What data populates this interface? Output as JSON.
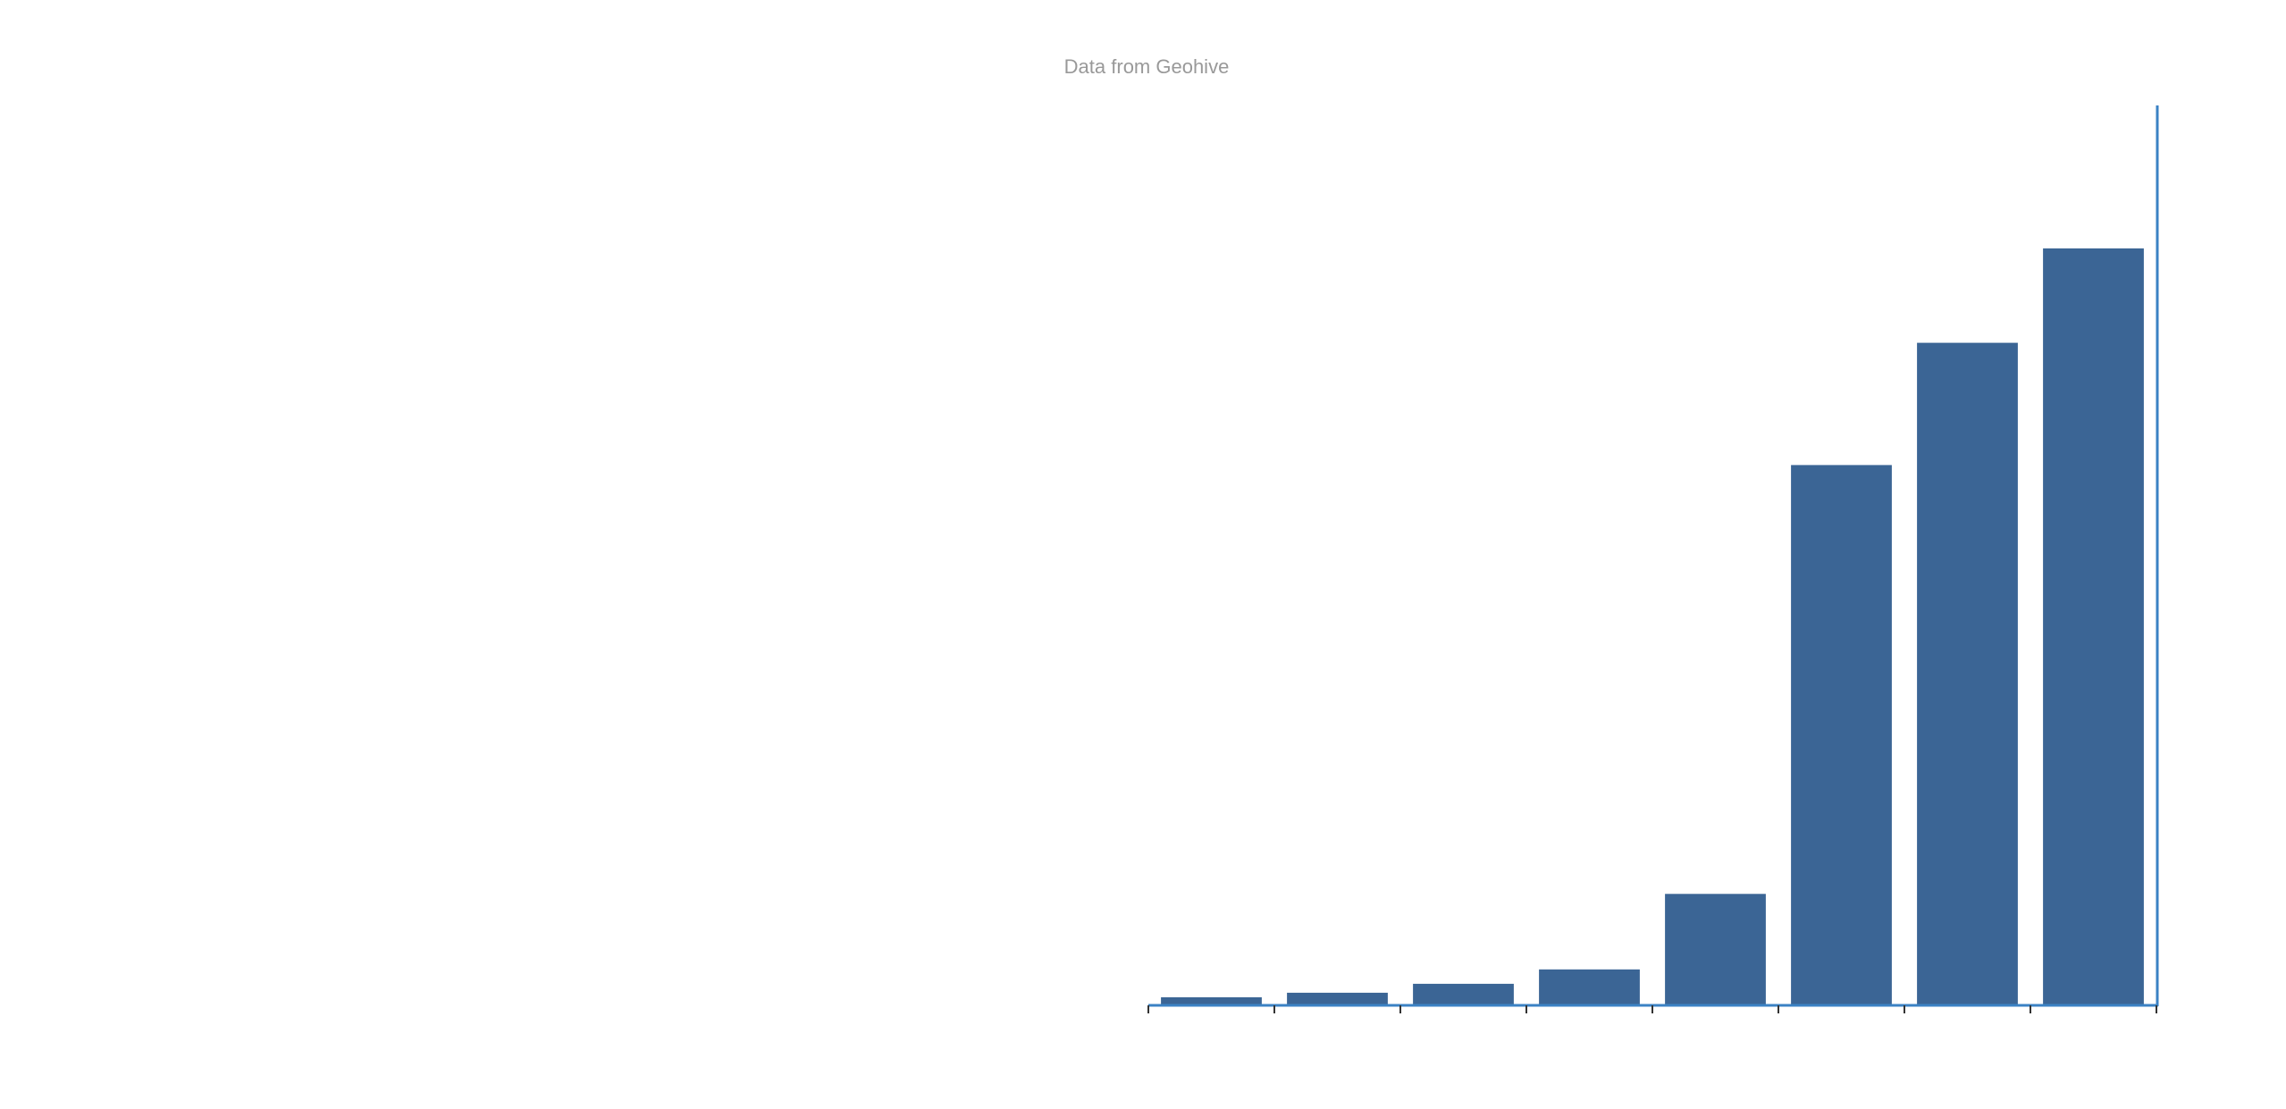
{
  "chart_data": {
    "type": "bar",
    "subtitle": "Data from Geohive",
    "title": "",
    "xlabel": "",
    "ylabel": "",
    "grid": false,
    "legend": "none",
    "ylim": [
      0,
      100
    ],
    "categories": [
      "",
      "",
      "",
      "",
      "",
      "",
      "",
      ""
    ],
    "values": [
      0.8,
      1.3,
      2.3,
      3.9,
      12.3,
      60.0,
      73.6,
      84.1
    ],
    "colors": {
      "bar": "#3b6595",
      "axis": "#3b82c4",
      "tick": "#333333",
      "subtitle": "#999999"
    }
  }
}
